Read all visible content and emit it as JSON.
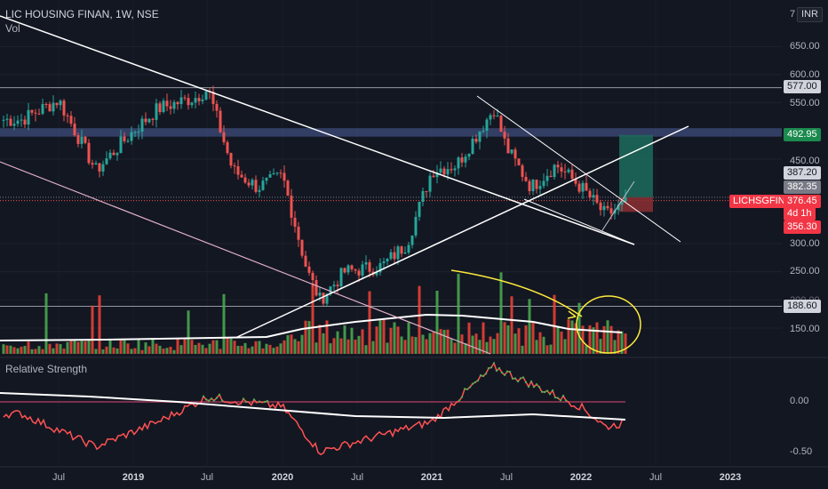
{
  "header": {
    "title": "LIC HOUSING FINAN, 1W, NSE",
    "vol_label": "Vol",
    "currency": "INR",
    "rs_label": "Relative Strength"
  },
  "price_axis": {
    "labels": [
      "650.00",
      "600.00",
      "550.00",
      "450.00",
      "300.00",
      "250.00",
      "200.00",
      "150.00"
    ],
    "top_partial": "7"
  },
  "price_tags": {
    "level_577": "577.00",
    "level_492": "492.95",
    "level_387": "387.20",
    "level_382": "382.35",
    "current": "376.45",
    "countdown": "4d 1h",
    "level_356": "356.30",
    "level_188": "188.60",
    "symbol": "LICHSGFIN"
  },
  "rs_axis": {
    "labels": [
      "0.00",
      "-0.50"
    ]
  },
  "time_axis": {
    "labels": [
      "Jul",
      "2019",
      "Jul",
      "2020",
      "Jul",
      "2021",
      "Jul",
      "2022",
      "Jul",
      "2023"
    ]
  },
  "colors": {
    "bg": "#131722",
    "up": "#26a69a",
    "down": "#ef5350",
    "vol_up": "#4caf50",
    "vol_down": "#f44336",
    "trendline": "#ffffff",
    "zone": "#5b6fb5",
    "annotation": "#ffeb3b",
    "rs_line": "#ff5252",
    "rs_strong": "#4caf50"
  },
  "chart_data": {
    "type": "candlestick",
    "symbol": "LICHSGFIN",
    "interval": "1W",
    "exchange": "NSE",
    "current_price": 376.45,
    "marked_levels": [
      577.0,
      492.95,
      387.2,
      382.35,
      356.3,
      188.6
    ],
    "key_points": [
      {
        "date": "2018-04",
        "price": 520
      },
      {
        "date": "2018-07",
        "price": 555
      },
      {
        "date": "2018-10",
        "price": 430
      },
      {
        "date": "2019-01",
        "price": 500
      },
      {
        "date": "2019-03",
        "price": 540
      },
      {
        "date": "2019-06",
        "price": 560
      },
      {
        "date": "2019-07",
        "price": 575
      },
      {
        "date": "2019-09",
        "price": 430
      },
      {
        "date": "2019-11",
        "price": 400
      },
      {
        "date": "2020-01",
        "price": 420
      },
      {
        "date": "2020-03",
        "price": 250
      },
      {
        "date": "2020-04",
        "price": 200
      },
      {
        "date": "2020-06",
        "price": 250
      },
      {
        "date": "2020-09",
        "price": 260
      },
      {
        "date": "2020-11",
        "price": 300
      },
      {
        "date": "2021-01",
        "price": 430
      },
      {
        "date": "2021-03",
        "price": 440
      },
      {
        "date": "2021-06",
        "price": 540
      },
      {
        "date": "2021-07",
        "price": 470
      },
      {
        "date": "2021-09",
        "price": 400
      },
      {
        "date": "2021-11",
        "price": 440
      },
      {
        "date": "2022-01",
        "price": 400
      },
      {
        "date": "2022-03",
        "price": 350
      },
      {
        "date": "2022-05",
        "price": 376.45
      }
    ],
    "x_axis_ticks": [
      "Jul",
      "2019",
      "Jul",
      "2020",
      "Jul",
      "2021",
      "Jul",
      "2022",
      "Jul",
      "2023"
    ],
    "rs_values": [
      {
        "date": "2018-04",
        "value": -0.12
      },
      {
        "date": "2018-10",
        "value": -0.45
      },
      {
        "date": "2019-03",
        "value": -0.2
      },
      {
        "date": "2019-07",
        "value": 0.05
      },
      {
        "date": "2020-01",
        "value": -0.05
      },
      {
        "date": "2020-04",
        "value": -0.5
      },
      {
        "date": "2021-01",
        "value": -0.2
      },
      {
        "date": "2021-06",
        "value": 0.35
      },
      {
        "date": "2022-01",
        "value": -0.05
      },
      {
        "date": "2022-03",
        "value": -0.25
      },
      {
        "date": "2022-05",
        "value": -0.2
      }
    ],
    "rs_axis_ticks": [
      "0.00",
      "-0.50"
    ]
  }
}
